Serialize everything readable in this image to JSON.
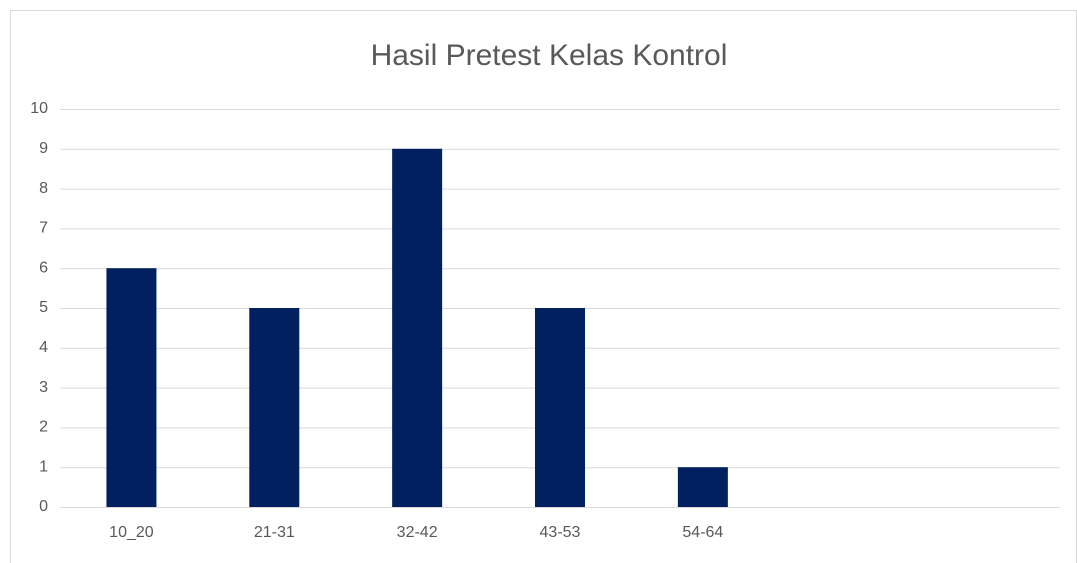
{
  "chart_data": {
    "type": "bar",
    "title": "Hasil Pretest Kelas Kontrol",
    "categories": [
      "10_20",
      "21-31",
      "32-42",
      "43-53",
      "54-64",
      null,
      null
    ],
    "values": [
      6,
      5,
      9,
      5,
      1,
      null,
      null
    ],
    "color": "#002060",
    "ylim": [
      0,
      10
    ],
    "yticks": [
      0,
      1,
      2,
      3,
      4,
      5,
      6,
      7,
      8,
      9,
      10
    ],
    "grid": true
  }
}
